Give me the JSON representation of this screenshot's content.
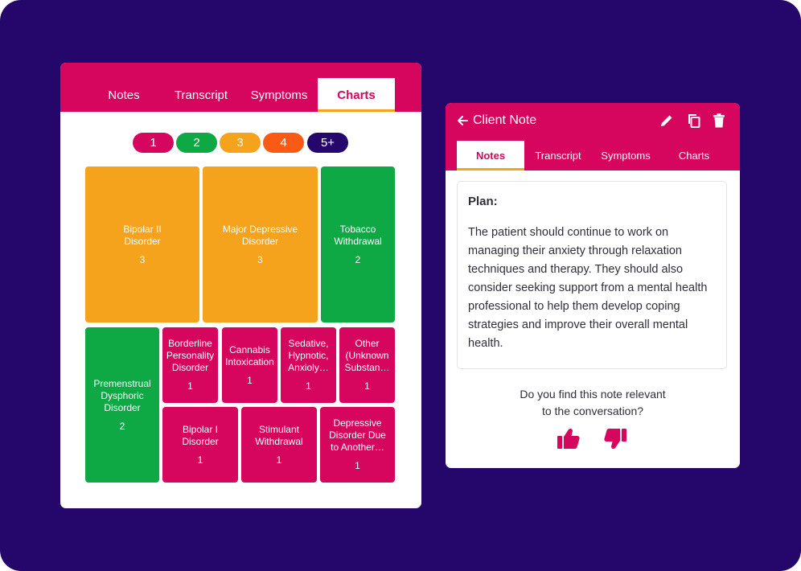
{
  "left_panel": {
    "tabs": [
      {
        "label": "Notes"
      },
      {
        "label": "Transcript"
      },
      {
        "label": "Symptoms"
      },
      {
        "label": "Charts"
      }
    ],
    "active_tab": "Charts",
    "legend": [
      {
        "label": "1",
        "color": "#d6065f"
      },
      {
        "label": "2",
        "color": "#0ea844"
      },
      {
        "label": "3",
        "color": "#f5a21c"
      },
      {
        "label": "4",
        "color": "#fb5a14"
      },
      {
        "label": "5+",
        "color": "#25066b"
      }
    ],
    "tiles": [
      {
        "label": "Bipolar II\nDisorder",
        "count": "3"
      },
      {
        "label": "Major Depressive\nDisorder",
        "count": "3"
      },
      {
        "label": "Tobacco\nWithdrawal",
        "count": "2"
      },
      {
        "label": "Premenstrual\nDysphoric\nDisorder",
        "count": "2"
      },
      {
        "label": "Borderline\nPersonality\nDisorder",
        "count": "1"
      },
      {
        "label": "Cannabis\nIntoxication",
        "count": "1"
      },
      {
        "label": "Sedative,\nHypnotic,\nAnxioly…",
        "count": "1"
      },
      {
        "label": "Other\n(Unknown\nSubstan…",
        "count": "1"
      },
      {
        "label": "Bipolar I\nDisorder",
        "count": "1"
      },
      {
        "label": "Stimulant\nWithdrawal",
        "count": "1"
      },
      {
        "label": "Depressive\nDisorder Due\nto Another…",
        "count": "1"
      }
    ]
  },
  "right_panel": {
    "title": "Client Note",
    "header_icons": [
      "back-arrow-icon",
      "pencil-icon",
      "copy-icon",
      "trash-icon"
    ],
    "tabs": [
      {
        "label": "Notes"
      },
      {
        "label": "Transcript"
      },
      {
        "label": "Symptoms"
      },
      {
        "label": "Charts"
      }
    ],
    "active_tab": "Notes",
    "note": {
      "heading": "Plan:",
      "body": "The patient should continue to work on managing their anxiety through relaxation techniques and therapy. They should also consider seeking support from a mental health professional to help them develop coping strategies and improve their overall mental health."
    },
    "feedback": {
      "question_line1": "Do you find this note relevant",
      "question_line2": "to the conversation?",
      "icons": [
        "thumbs-up-icon",
        "thumbs-down-icon"
      ]
    }
  },
  "colors": {
    "background": "#25066b",
    "brand": "#d6065f",
    "accent": "#f5a21c",
    "green": "#0ea844",
    "orange": "#fb5a14"
  }
}
